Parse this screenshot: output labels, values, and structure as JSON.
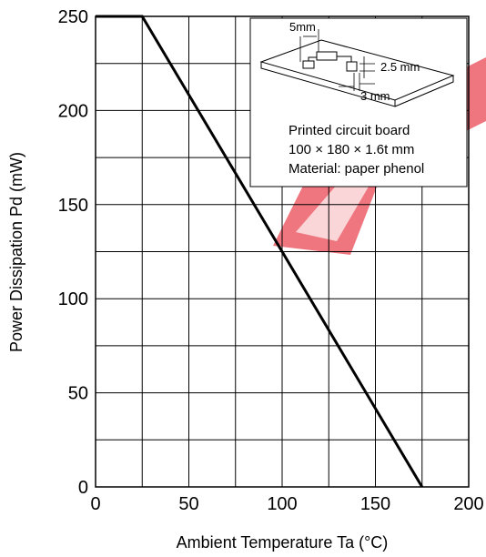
{
  "chart_data": {
    "type": "line",
    "xlabel": "Ambient Temperature   Ta   (°C)",
    "ylabel": "Power Dissipation   Pd   (mW)",
    "xlim": [
      0,
      200
    ],
    "ylim": [
      0,
      250
    ],
    "x_ticks": [
      0,
      50,
      100,
      150,
      200
    ],
    "y_ticks": [
      0,
      50,
      100,
      150,
      200,
      250
    ],
    "x_grid": [
      0,
      25,
      50,
      75,
      100,
      125,
      150,
      175,
      200
    ],
    "y_grid": [
      0,
      25,
      50,
      75,
      100,
      125,
      150,
      175,
      200,
      225,
      250
    ],
    "grid": true,
    "series": [
      {
        "x": [
          0,
          25,
          175
        ],
        "y": [
          250,
          250,
          0
        ],
        "color": "#000000"
      }
    ],
    "inset": {
      "lines": [
        "Printed circuit board",
        "100 × 180 × 1.6t mm",
        "Material: paper phenol"
      ],
      "dimensions": [
        "5mm",
        "2.5 mm",
        "3 mm"
      ]
    }
  },
  "watermark_color": "#e0101e"
}
